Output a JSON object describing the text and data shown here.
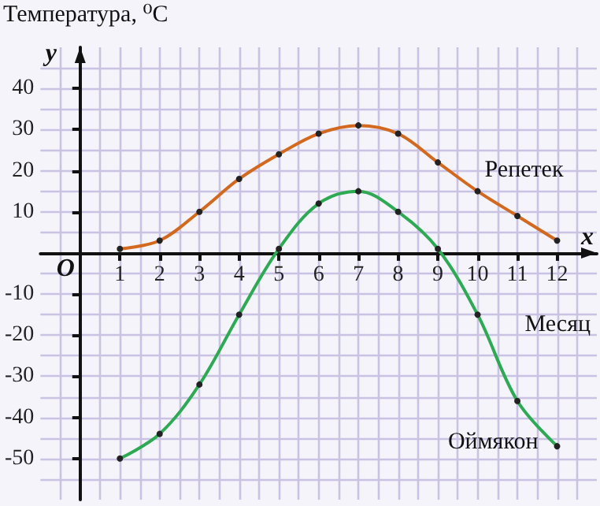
{
  "chart_data": {
    "type": "line",
    "xlabel": "Месяц",
    "ylabel": "Температура, ⁰C",
    "annotations": [
      "x",
      "y",
      "O"
    ],
    "x": [
      1,
      2,
      3,
      4,
      5,
      6,
      7,
      8,
      9,
      10,
      11,
      12
    ],
    "series": [
      {
        "name": "Репетек",
        "color": "#d2691e",
        "values": [
          1,
          3,
          10,
          18,
          24,
          29,
          31,
          29,
          22,
          15,
          9,
          3
        ]
      },
      {
        "name": "Оймякон",
        "color": "#2eaa55",
        "values": [
          -50,
          -44,
          -32,
          -15,
          1,
          12,
          15,
          10,
          1,
          -15,
          -36,
          -47
        ]
      }
    ],
    "xlim": [
      -1,
      13
    ],
    "xticks": [
      1,
      2,
      3,
      4,
      5,
      6,
      7,
      8,
      9,
      10,
      11,
      12
    ],
    "ylim": [
      -60,
      50
    ],
    "yticks": [
      -50,
      -40,
      -30,
      -20,
      -10,
      10,
      20,
      30,
      40
    ],
    "grid": true,
    "marker": "circle",
    "line_style": "solid"
  }
}
